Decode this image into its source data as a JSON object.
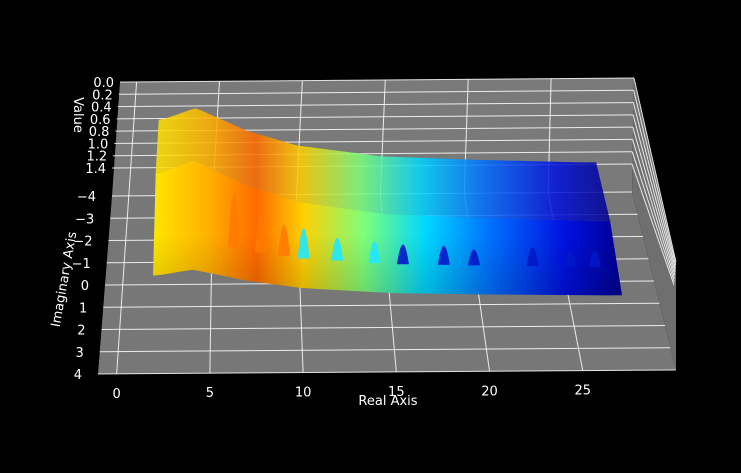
{
  "chart_data": {
    "type": "surface3d",
    "title": "",
    "xlabel": "Real Axis",
    "ylabel": "Imaginary Axis",
    "zlabel": "Value",
    "x_ticks": [
      "0",
      "5",
      "10",
      "15",
      "20",
      "25"
    ],
    "y_ticks": [
      "−4",
      "−3",
      "−2",
      "−1",
      "0",
      "1",
      "2",
      "3",
      "4"
    ],
    "z_ticks": [
      "0.0",
      "0.2",
      "0.4",
      "0.6",
      "0.8",
      "1.0",
      "1.2",
      "1.4"
    ],
    "xlim": [
      -1,
      30
    ],
    "ylim": [
      -4,
      4
    ],
    "zlim": [
      0,
      1.4
    ],
    "z_inverted": true,
    "colormap": "jet",
    "background": "#000000",
    "pane_color": "#7a7a7a",
    "grid": true,
    "surface": {
      "x_range": [
        1.8,
        27.8
      ],
      "y_range": [
        -1,
        1
      ],
      "baseline_profile": [
        {
          "x": 2,
          "z": 1.05
        },
        {
          "x": 4,
          "z": 1.2
        },
        {
          "x": 5,
          "z": 1.1
        },
        {
          "x": 7,
          "z": 0.9
        },
        {
          "x": 10,
          "z": 0.7
        },
        {
          "x": 15,
          "z": 0.55
        },
        {
          "x": 20,
          "z": 0.5
        },
        {
          "x": 27,
          "z": 0.45
        }
      ],
      "peaks": [
        {
          "x": 6.3,
          "z": 1.4
        },
        {
          "x": 7.8,
          "z": 1.05
        },
        {
          "x": 9.1,
          "z": 0.9
        },
        {
          "x": 10.2,
          "z": 0.85
        },
        {
          "x": 12.1,
          "z": 0.7
        },
        {
          "x": 14.2,
          "z": 0.65
        },
        {
          "x": 15.8,
          "z": 0.6
        },
        {
          "x": 18.1,
          "z": 0.58
        },
        {
          "x": 19.8,
          "z": 0.52
        },
        {
          "x": 23.1,
          "z": 0.55
        },
        {
          "x": 25.2,
          "z": 0.5
        },
        {
          "x": 26.6,
          "z": 0.5
        }
      ]
    }
  }
}
